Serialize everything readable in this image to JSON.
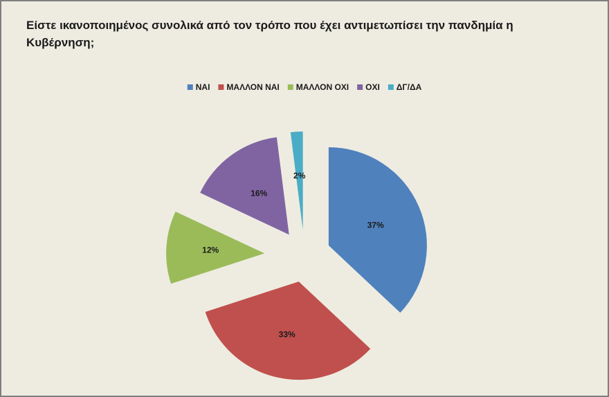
{
  "chart_data": {
    "type": "pie",
    "title": "Είστε ικανοποιημένος συνολικά από τον τρόπο που έχει αντιμετωπίσει την πανδημία η Κυβέρνηση;",
    "categories": [
      "ΝΑΙ",
      "ΜΑΛΛΟΝ ΝΑΙ",
      "ΜΑΛΛΟΝ ΟΧΙ",
      "ΟΧΙ",
      "ΔΓ/ΔΑ"
    ],
    "values": [
      37,
      33,
      12,
      16,
      2
    ],
    "data_labels": [
      "37%",
      "33%",
      "12%",
      "16%",
      "2%"
    ],
    "colors": [
      "#4f81bd",
      "#c0504d",
      "#9bbb59",
      "#8064a2",
      "#4bacc6"
    ],
    "legend_position": "top",
    "exploded": true
  }
}
